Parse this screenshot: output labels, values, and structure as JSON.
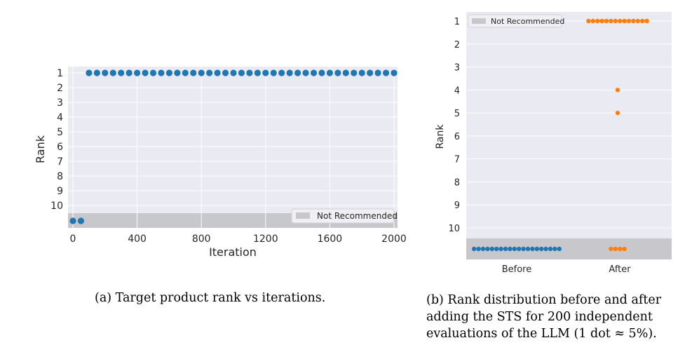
{
  "colors": {
    "background": "#eaeaf2",
    "grid": "#ffffff",
    "band": "#c8c8cc",
    "blue": "#1f77b4",
    "orange": "#ff7f0e"
  },
  "chart_data": [
    {
      "type": "scatter",
      "xlabel": "Iteration",
      "ylabel": "Rank",
      "xlim": [
        -20,
        2020
      ],
      "xticks": [
        "0",
        "400",
        "800",
        "1200",
        "1600",
        "2000"
      ],
      "yticks": [
        "1",
        "2",
        "3",
        "4",
        "5",
        "6",
        "7",
        "8",
        "9",
        "10"
      ],
      "legend": {
        "label": "Not Recommended",
        "position": "bottom-right"
      },
      "grid": true,
      "series": [
        {
          "points": [
            {
              "x": 0,
              "y": "Not Recommended"
            },
            {
              "x": 50,
              "y": "Not Recommended"
            },
            {
              "x": 100,
              "y": 1
            },
            {
              "x": 150,
              "y": 1
            },
            {
              "x": 200,
              "y": 1
            },
            {
              "x": 250,
              "y": 1
            },
            {
              "x": 300,
              "y": 1
            },
            {
              "x": 350,
              "y": 1
            },
            {
              "x": 400,
              "y": 1
            },
            {
              "x": 450,
              "y": 1
            },
            {
              "x": 500,
              "y": 1
            },
            {
              "x": 550,
              "y": 1
            },
            {
              "x": 600,
              "y": 1
            },
            {
              "x": 650,
              "y": 1
            },
            {
              "x": 700,
              "y": 1
            },
            {
              "x": 750,
              "y": 1
            },
            {
              "x": 800,
              "y": 1
            },
            {
              "x": 850,
              "y": 1
            },
            {
              "x": 900,
              "y": 1
            },
            {
              "x": 950,
              "y": 1
            },
            {
              "x": 1000,
              "y": 1
            },
            {
              "x": 1050,
              "y": 1
            },
            {
              "x": 1100,
              "y": 1
            },
            {
              "x": 1150,
              "y": 1
            },
            {
              "x": 1200,
              "y": 1
            },
            {
              "x": 1250,
              "y": 1
            },
            {
              "x": 1300,
              "y": 1
            },
            {
              "x": 1350,
              "y": 1
            },
            {
              "x": 1400,
              "y": 1
            },
            {
              "x": 1450,
              "y": 1
            },
            {
              "x": 1500,
              "y": 1
            },
            {
              "x": 1550,
              "y": 1
            },
            {
              "x": 1600,
              "y": 1
            },
            {
              "x": 1650,
              "y": 1
            },
            {
              "x": 1700,
              "y": 1
            },
            {
              "x": 1750,
              "y": 1
            },
            {
              "x": 1800,
              "y": 1
            },
            {
              "x": 1850,
              "y": 1
            },
            {
              "x": 1900,
              "y": 1
            },
            {
              "x": 1950,
              "y": 1
            },
            {
              "x": 2000,
              "y": 1
            }
          ]
        }
      ]
    },
    {
      "type": "scatter",
      "ylabel": "Rank",
      "categories": [
        "Before",
        "After"
      ],
      "yticks": [
        "1",
        "2",
        "3",
        "4",
        "5",
        "6",
        "7",
        "8",
        "9",
        "10"
      ],
      "legend": {
        "label": "Not Recommended",
        "position": "top-left"
      },
      "grid": true,
      "series": [
        {
          "category": "Before",
          "points": [
            {
              "y": "Not Recommended",
              "count": 20
            }
          ]
        },
        {
          "category": "After",
          "points": [
            {
              "y": 1,
              "count": 14
            },
            {
              "y": 4,
              "count": 1
            },
            {
              "y": 5,
              "count": 1
            },
            {
              "y": "Not Recommended",
              "count": 4
            }
          ]
        }
      ]
    }
  ],
  "captions": {
    "a": "(a) Target product rank vs iterations.",
    "b_line1": "(b) Rank distribution before and after",
    "b_line2": "adding the STS for 200 independent",
    "b_line3": "evaluations of the LLM (1 dot ≈ 5%)."
  }
}
